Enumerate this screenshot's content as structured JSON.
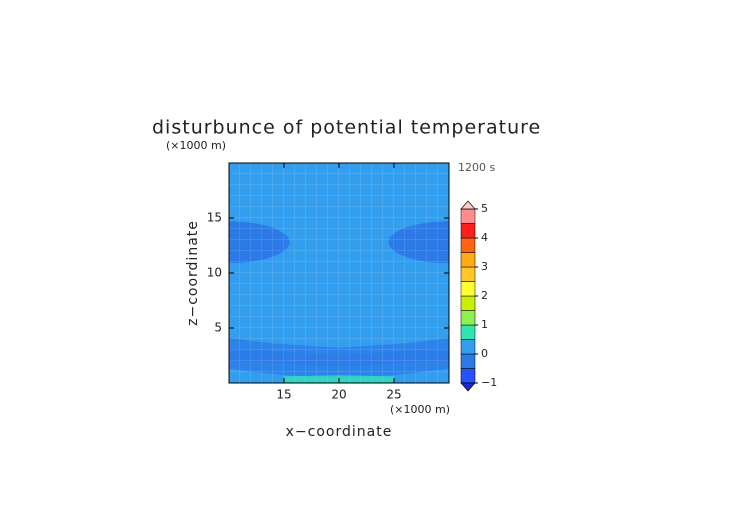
{
  "chart_data": {
    "type": "contour",
    "title": "disturbunce of potential temperature",
    "x_label": "x−coordinate",
    "y_label": "z−coordinate",
    "x_unit": "(×1000 m)",
    "y_unit": "(×1000 m)",
    "annotation": "1200 s",
    "xlim": [
      10,
      30
    ],
    "ylim": [
      0,
      20
    ],
    "xticks": [
      15,
      20,
      25
    ],
    "yticks": [
      5,
      10,
      15
    ],
    "background_level": 0,
    "regions": [
      {
        "shape": "polygon",
        "level": -0.5,
        "points": [
          [
            10,
            4.1
          ],
          [
            14,
            3.6
          ],
          [
            20,
            3.2
          ],
          [
            26,
            3.6
          ],
          [
            30,
            4.1
          ],
          [
            30,
            1.3
          ],
          [
            25,
            0.7
          ],
          [
            20,
            0.5
          ],
          [
            15,
            0.7
          ],
          [
            10,
            1.3
          ]
        ]
      },
      {
        "shape": "polygon",
        "level": -0.5,
        "points": [
          [
            10,
            3.2
          ],
          [
            20,
            2.5
          ],
          [
            30,
            3.2
          ],
          [
            30,
            2.0
          ],
          [
            20,
            1.5
          ],
          [
            10,
            2.0
          ]
        ]
      },
      {
        "shape": "polygon",
        "level": 0.5,
        "points": [
          [
            15,
            0.6
          ],
          [
            20,
            0.7
          ],
          [
            25,
            0.6
          ],
          [
            25,
            0
          ],
          [
            15,
            0
          ]
        ]
      },
      {
        "shape": "ellipse",
        "level": -0.5,
        "center": [
          10,
          12.8
        ],
        "radii": [
          5.5,
          1.9
        ]
      },
      {
        "shape": "ellipse",
        "level": -0.5,
        "center": [
          30,
          12.8
        ],
        "radii": [
          5.5,
          1.9
        ]
      }
    ],
    "colorbar": {
      "levels": [
        -1,
        -0.5,
        0,
        0.5,
        1,
        1.5,
        2,
        2.5,
        3,
        3.5,
        4,
        4.5,
        5
      ],
      "colors": [
        "#2850ff",
        "#2c7ae8",
        "#349eee",
        "#30e6b0",
        "#8cf050",
        "#c8f000",
        "#ffff32",
        "#ffc828",
        "#ffaa14",
        "#ff6414",
        "#ff1e1e",
        "#ff8c8c",
        "#ffb4b4"
      ],
      "under_color": "#1e28d2",
      "over_color": "#ffc8c8",
      "ticks": [
        {
          "value": -1,
          "label": "−1"
        },
        0,
        1,
        2,
        3,
        4,
        5
      ]
    }
  }
}
